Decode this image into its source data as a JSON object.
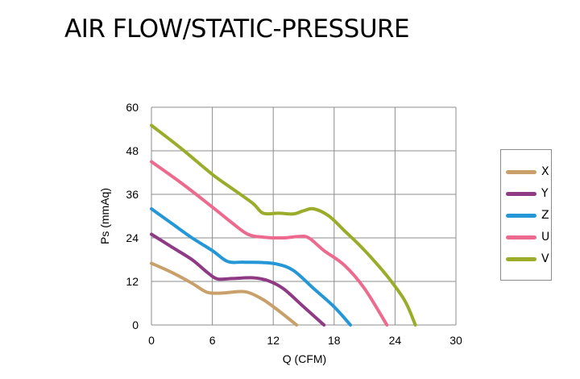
{
  "title": "AIR FLOW/STATIC-PRESSURE",
  "chart_data": {
    "type": "line",
    "title": "AIR FLOW/STATIC-PRESSURE",
    "xlabel": "Q (CFM)",
    "ylabel": "Ps (mmAq)",
    "xlim": [
      0,
      30
    ],
    "ylim": [
      0,
      60
    ],
    "xticks": [
      0,
      6,
      12,
      18,
      24,
      30
    ],
    "yticks": [
      0,
      12,
      24,
      36,
      48,
      60
    ],
    "grid": true,
    "legend_position": "right",
    "series": [
      {
        "name": "X",
        "color": "#c9a06a",
        "points": [
          [
            0,
            17
          ],
          [
            2,
            14.5
          ],
          [
            4,
            11.5
          ],
          [
            5.5,
            9
          ],
          [
            7,
            8.8
          ],
          [
            8.5,
            9.2
          ],
          [
            9.5,
            9
          ],
          [
            11,
            7
          ],
          [
            12.5,
            4
          ],
          [
            14.3,
            0
          ]
        ]
      },
      {
        "name": "Y",
        "color": "#8e3a85",
        "points": [
          [
            0,
            25
          ],
          [
            2,
            21.5
          ],
          [
            4,
            18
          ],
          [
            5.5,
            14.5
          ],
          [
            6.5,
            12.7
          ],
          [
            8,
            12.8
          ],
          [
            10,
            13
          ],
          [
            11.5,
            12.2
          ],
          [
            13,
            10
          ],
          [
            15,
            5
          ],
          [
            17,
            0
          ]
        ]
      },
      {
        "name": "Z",
        "color": "#2597d6",
        "points": [
          [
            0,
            32
          ],
          [
            2,
            28
          ],
          [
            4,
            24
          ],
          [
            6,
            20.5
          ],
          [
            7.5,
            17.5
          ],
          [
            9,
            17.3
          ],
          [
            11,
            17.2
          ],
          [
            12.5,
            16.7
          ],
          [
            14,
            15
          ],
          [
            16,
            10
          ],
          [
            18,
            5
          ],
          [
            19.6,
            0
          ]
        ]
      },
      {
        "name": "U",
        "color": "#ec6a8e",
        "points": [
          [
            0,
            45
          ],
          [
            3,
            39
          ],
          [
            6,
            32.5
          ],
          [
            8,
            28
          ],
          [
            9.5,
            25
          ],
          [
            11,
            24.2
          ],
          [
            13,
            24
          ],
          [
            14.5,
            24.4
          ],
          [
            15.5,
            24
          ],
          [
            17,
            20.5
          ],
          [
            19,
            16.5
          ],
          [
            21,
            10
          ],
          [
            23.2,
            0
          ]
        ]
      },
      {
        "name": "V",
        "color": "#9aac2a",
        "points": [
          [
            0,
            55
          ],
          [
            3,
            48.5
          ],
          [
            6,
            41.5
          ],
          [
            8,
            37.5
          ],
          [
            10,
            33.5
          ],
          [
            11,
            30.8
          ],
          [
            12.5,
            30.8
          ],
          [
            14,
            30.6
          ],
          [
            15,
            31.5
          ],
          [
            16,
            32
          ],
          [
            17.5,
            30
          ],
          [
            19,
            26
          ],
          [
            20.5,
            22
          ],
          [
            22,
            17.5
          ],
          [
            23.5,
            12.5
          ],
          [
            25,
            6.5
          ],
          [
            26,
            0
          ]
        ]
      }
    ]
  }
}
